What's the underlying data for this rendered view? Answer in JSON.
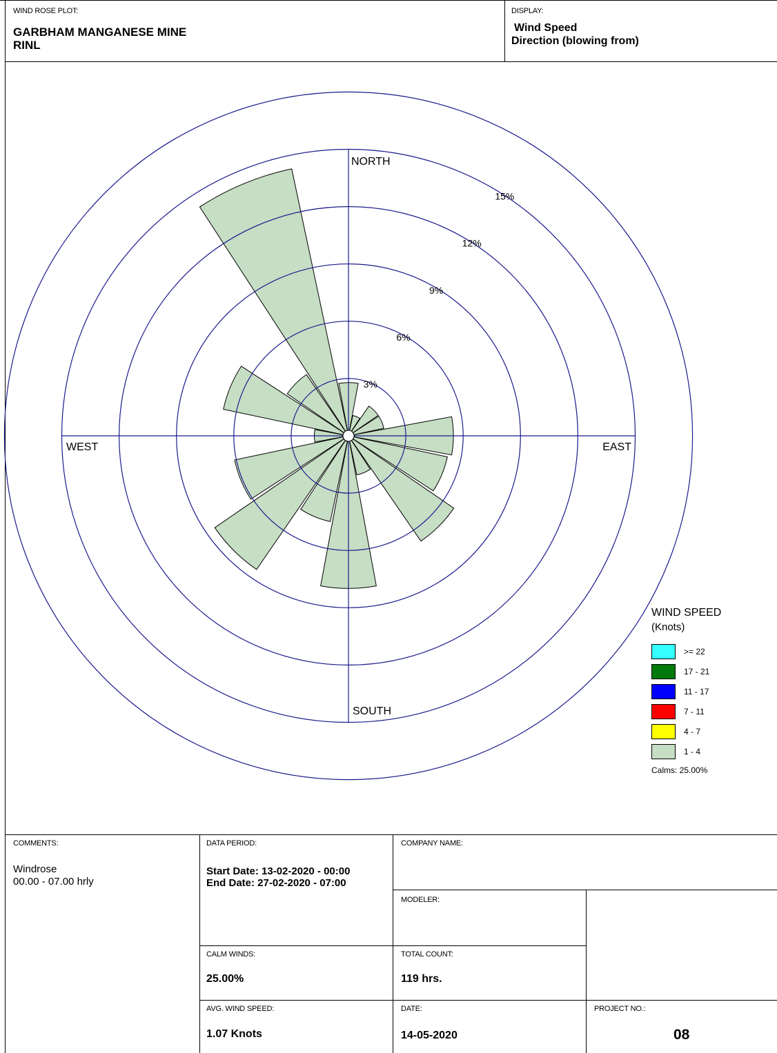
{
  "header": {
    "plot_label": "WIND ROSE PLOT:",
    "title_line1": "GARBHAM MANGANESE MINE",
    "title_line2": "RINL",
    "display_label": "DISPLAY:",
    "display_line1": "Wind Speed",
    "display_line2": "Direction (blowing from)"
  },
  "chart_data": {
    "type": "windrose",
    "direction_labels": [
      "NORTH",
      "EAST",
      "SOUTH",
      "WEST"
    ],
    "ring_labels": [
      "3%",
      "6%",
      "9%",
      "12%",
      "15%"
    ],
    "sectors": [
      "N",
      "NNE",
      "NE",
      "ENE",
      "E",
      "ESE",
      "SE",
      "SSE",
      "S",
      "SSW",
      "SW",
      "WSW",
      "W",
      "WNW",
      "NW",
      "NNW"
    ],
    "frequency_percent": [
      2.5,
      0.8,
      1.6,
      1.6,
      5.2,
      5.0,
      6.4,
      1.8,
      7.7,
      4.3,
      8.2,
      5.8,
      1.5,
      6.4,
      3.6,
      14.0
    ],
    "speed_bin_all": "1 - 4",
    "sector_color": "#c6dec4",
    "axis_color": "#1a1a8c",
    "legend": {
      "title_line1": "WIND SPEED",
      "title_line2": "(Knots)",
      "bins": [
        {
          "label": ">= 22",
          "color": "#33ffff"
        },
        {
          "label": "17 - 21",
          "color": "#007a0c"
        },
        {
          "label": "11 - 17",
          "color": "#0000ff"
        },
        {
          "label": "7 - 11",
          "color": "#ff0000"
        },
        {
          "label": "4 - 7",
          "color": "#ffff00"
        },
        {
          "label": "1 - 4",
          "color": "#c6dec4"
        }
      ],
      "calms": "Calms: 25.00%"
    }
  },
  "footer": {
    "comments_label": "COMMENTS:",
    "comments_line1": "Windrose",
    "comments_line2": "00.00 - 07.00 hrly",
    "data_period_label": "DATA PERIOD:",
    "start_date": "Start Date: 13-02-2020 - 00:00",
    "end_date": "End Date: 27-02-2020 - 07:00",
    "company_label": "COMPANY NAME:",
    "modeler_label": "MODELER:",
    "calm_label": "CALM WINDS:",
    "calm_value": "25.00%",
    "count_label": "TOTAL COUNT:",
    "count_value": "119 hrs.",
    "avg_label": "AVG. WIND SPEED:",
    "avg_value": "1.07 Knots",
    "date_label": "DATE:",
    "date_value": "14-05-2020",
    "project_label": "PROJECT NO.:",
    "project_value": "08"
  }
}
